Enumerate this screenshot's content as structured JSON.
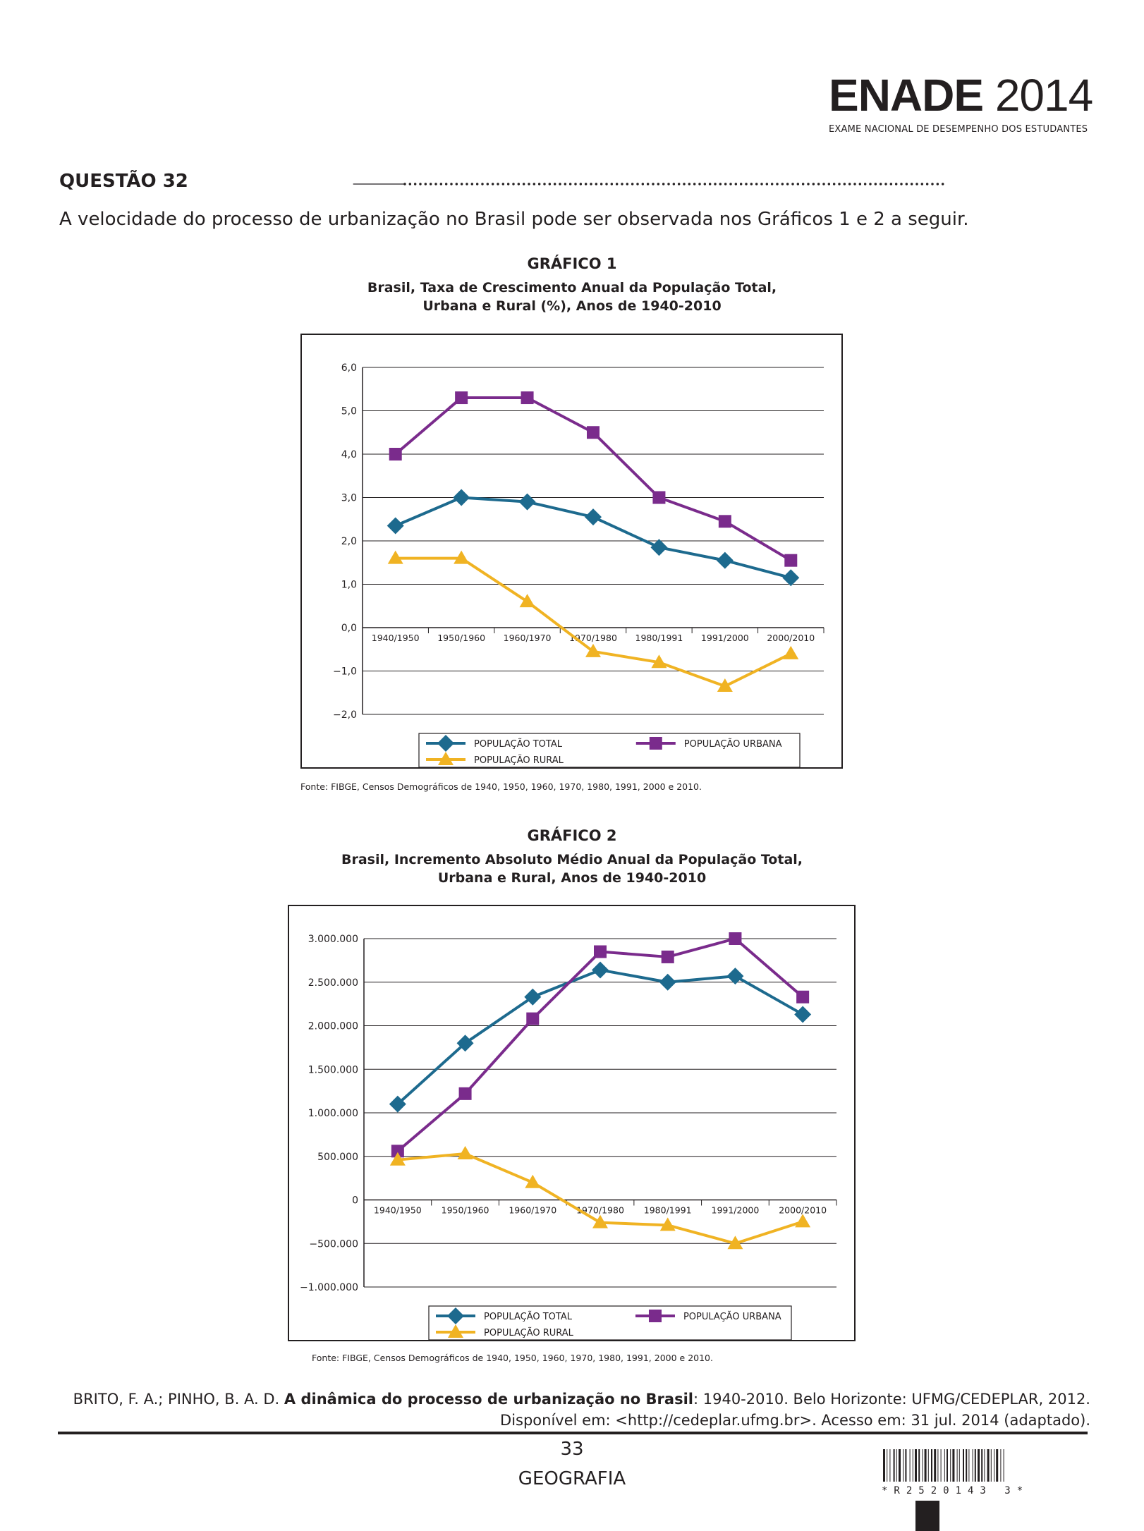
{
  "header": {
    "logo_word": "ENADE",
    "logo_year": "2014",
    "logo_subtitle": "EXAME NACIONAL DE DESEMPENHO DOS ESTUDANTES"
  },
  "question": {
    "title": "QUESTÃO 32",
    "intro": "A velocidade do processo de urbanização no Brasil pode ser observada nos Gráficos 1 e 2 a seguir."
  },
  "chart1": {
    "heading": "GRÁFICO 1",
    "title_line1": "Brasil, Taxa de Crescimento Anual da População Total,",
    "title_line2": "Urbana e Rural (%), Anos de 1940-2010",
    "source": "Fonte: FIBGE, Censos Demográficos de 1940, 1950, 1960, 1970, 1980, 1991, 2000 e 2010."
  },
  "chart2": {
    "heading": "GRÁFICO 2",
    "title_line1": "Brasil, Incremento Absoluto Médio Anual da População Total,",
    "title_line2": "Urbana e Rural, Anos de 1940-2010",
    "source": "Fonte: FIBGE, Censos Demográficos de 1940, 1950, 1960, 1970, 1980, 1991, 2000 e 2010."
  },
  "chart_data": [
    {
      "type": "line",
      "title": "Brasil, Taxa de Crescimento Anual da População Total, Urbana e Rural (%), Anos de 1940-2010",
      "categories": [
        "1940/1950",
        "1950/1960",
        "1960/1970",
        "1970/1980",
        "1980/1991",
        "1991/2000",
        "2000/2010"
      ],
      "y_ticks": [
        "6,0",
        "5,0",
        "4,0",
        "3,0",
        "2,0",
        "1,0",
        "0,0",
        "−1,0",
        "−2,0"
      ],
      "ylim": [
        -2,
        6
      ],
      "grid": true,
      "legend": "bottom",
      "series": [
        {
          "name": "POPULAÇÃO TOTAL",
          "marker": "diamond",
          "color": "#1d6a8e",
          "values": [
            2.35,
            3.0,
            2.9,
            2.55,
            1.85,
            1.55,
            1.15
          ]
        },
        {
          "name": "POPULAÇÃO URBANA",
          "marker": "square",
          "color": "#7a2b8c",
          "values": [
            4.0,
            5.3,
            5.3,
            4.5,
            3.0,
            2.45,
            1.55
          ]
        },
        {
          "name": "POPULAÇÃO RURAL",
          "marker": "triangle",
          "color": "#f0b323",
          "values": [
            1.6,
            1.6,
            0.6,
            -0.55,
            -0.8,
            -1.35,
            -0.6
          ]
        }
      ]
    },
    {
      "type": "line",
      "title": "Brasil, Incremento Absoluto Médio Anual da População Total, Urbana e Rural, Anos de 1940-2010",
      "categories": [
        "1940/1950",
        "1950/1960",
        "1960/1970",
        "1970/1980",
        "1980/1991",
        "1991/2000",
        "2000/2010"
      ],
      "y_ticks": [
        "3.000.000",
        "2.500.000",
        "2.000.000",
        "1.500.000",
        "1.000.000",
        "500.000",
        "0",
        "−500.000",
        "−1.000.000"
      ],
      "ylim": [
        -1000000,
        3000000
      ],
      "grid": true,
      "legend": "bottom",
      "series": [
        {
          "name": "POPULAÇÃO TOTAL",
          "marker": "diamond",
          "color": "#1d6a8e",
          "values": [
            1100000,
            1800000,
            2330000,
            2640000,
            2500000,
            2570000,
            2130000
          ]
        },
        {
          "name": "POPULAÇÃO URBANA",
          "marker": "square",
          "color": "#7a2b8c",
          "values": [
            560000,
            1220000,
            2080000,
            2850000,
            2790000,
            3000000,
            2330000
          ]
        },
        {
          "name": "POPULAÇÃO RURAL",
          "marker": "triangle",
          "color": "#f0b323",
          "values": [
            460000,
            530000,
            200000,
            -260000,
            -290000,
            -500000,
            -250000
          ]
        }
      ]
    }
  ],
  "citation": {
    "authors": "BRITO, F. A.; PINHO, B. A. D. ",
    "title": "A dinâmica do processo de urbanização no Brasil",
    "rest": ": 1940-2010. Belo Horizonte: UFMG/CEDEPLAR, 2012.",
    "line2": "Disponível em: <http://cedeplar.ufmg.br>. Acesso em: 31 jul. 2014 (adaptado)."
  },
  "footer": {
    "page_number": "33",
    "subject": "GEOGRAFIA",
    "barcode_text": "*R2520143 3*"
  }
}
